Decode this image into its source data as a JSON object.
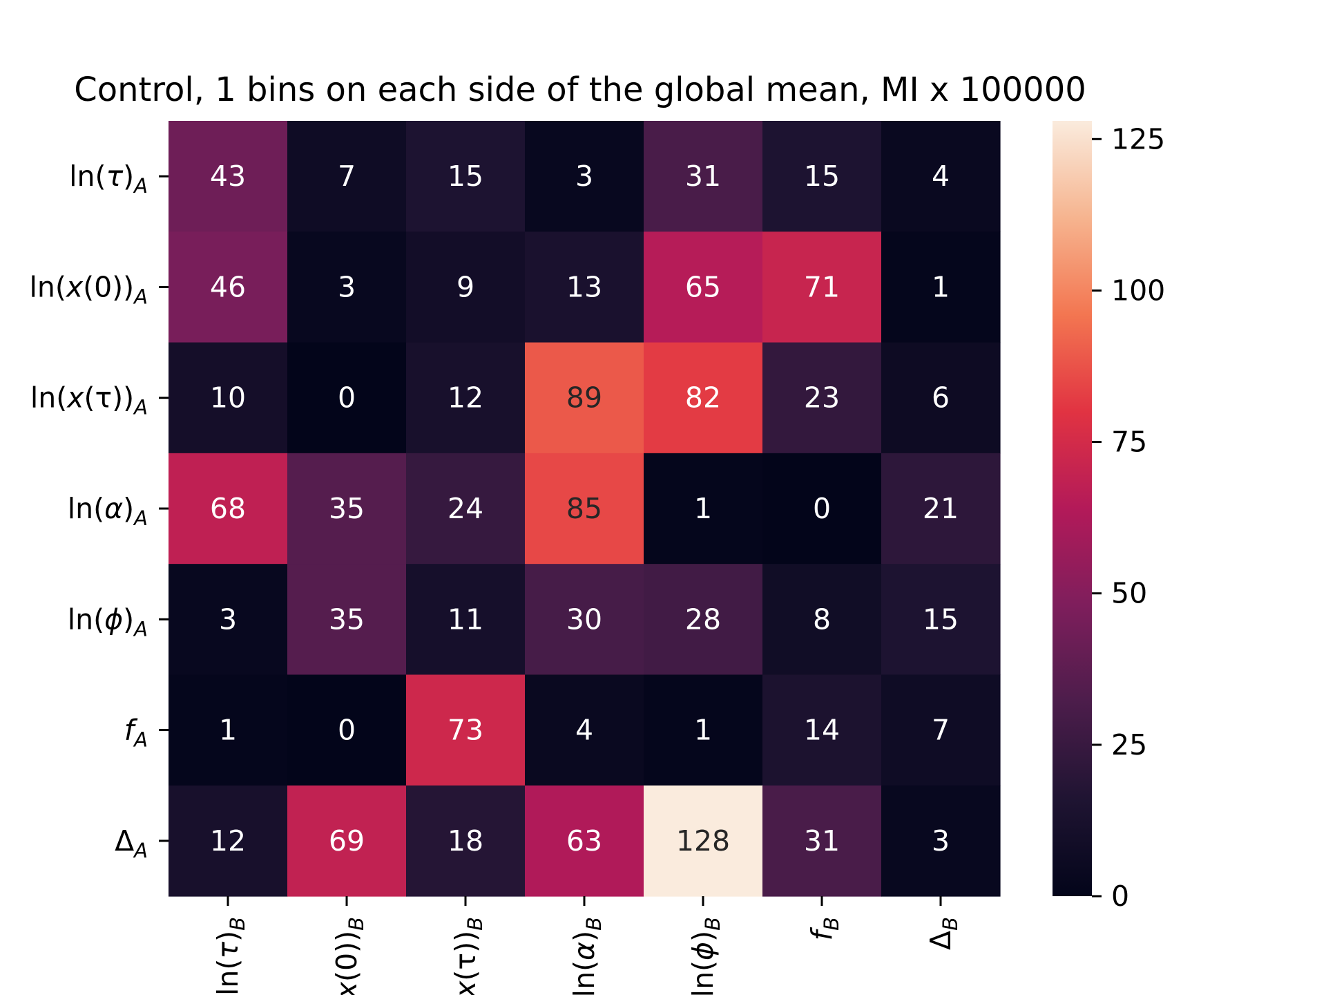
{
  "chart_data": {
    "type": "heatmap",
    "title": "Control, 1 bins on each side of the global mean, MI x 100000",
    "rows": [
      {
        "base": "ln(",
        "sym": "τ",
        "tail": ")",
        "sub": "A"
      },
      {
        "base": "ln(",
        "sym": "x",
        "tail": "(0))",
        "sub": "A"
      },
      {
        "base": "ln(",
        "sym": "x",
        "tail": "(τ))",
        "sub": "A"
      },
      {
        "base": "ln(",
        "sym": "α",
        "tail": ")",
        "sub": "A"
      },
      {
        "base": "ln(",
        "sym": "ϕ",
        "tail": ")",
        "sub": "A"
      },
      {
        "base": "",
        "sym": "f",
        "tail": "",
        "sub": "A"
      },
      {
        "base": "Δ",
        "sym": "",
        "tail": "",
        "sub": "A"
      }
    ],
    "columns": [
      {
        "base": "ln(",
        "sym": "τ",
        "tail": ")",
        "sub": "B"
      },
      {
        "base": "ln(",
        "sym": "x",
        "tail": "(0))",
        "sub": "B"
      },
      {
        "base": "ln(",
        "sym": "x",
        "tail": "(τ))",
        "sub": "B"
      },
      {
        "base": "ln(",
        "sym": "α",
        "tail": ")",
        "sub": "B"
      },
      {
        "base": "ln(",
        "sym": "ϕ",
        "tail": ")",
        "sub": "B"
      },
      {
        "base": "",
        "sym": "f",
        "tail": "",
        "sub": "B"
      },
      {
        "base": "Δ",
        "sym": "",
        "tail": "",
        "sub": "B"
      }
    ],
    "values": [
      [
        43,
        7,
        15,
        3,
        31,
        15,
        4
      ],
      [
        46,
        3,
        9,
        13,
        65,
        71,
        1
      ],
      [
        10,
        0,
        12,
        89,
        82,
        23,
        6
      ],
      [
        68,
        35,
        24,
        85,
        1,
        0,
        21
      ],
      [
        3,
        35,
        11,
        30,
        28,
        8,
        15
      ],
      [
        1,
        0,
        73,
        4,
        1,
        14,
        7
      ],
      [
        12,
        69,
        18,
        63,
        128,
        31,
        3
      ]
    ],
    "colorbar": {
      "vmin": 0,
      "vmax": 128,
      "ticks": [
        0,
        25,
        50,
        75,
        100,
        125
      ],
      "colormap": "rocket",
      "colormap_stops": [
        "#03051a",
        "#1f1432",
        "#4c1d4b",
        "#7e1e5c",
        "#b31a59",
        "#e13342",
        "#f37651",
        "#f6b48f",
        "#faebdd"
      ]
    },
    "annotation_colors": {
      "on_dark": "#ffffff",
      "on_light": "#262626"
    },
    "grid": false,
    "legend": "colorbar-right"
  }
}
